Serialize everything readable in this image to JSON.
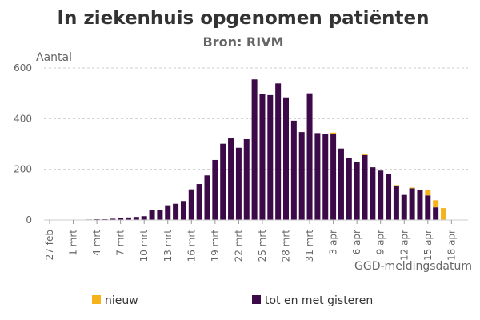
{
  "chart_data": {
    "type": "bar",
    "stacked": true,
    "title": "In ziekenhuis opgenomen patiënten",
    "subtitle": "Bron: RIVM",
    "ylabel": "Aantal",
    "xlabel": "GGD-meldingsdatum",
    "ylim": [
      0,
      600
    ],
    "yticks": [
      0,
      200,
      400,
      600
    ],
    "grid": true,
    "legend_position": "bottom",
    "colors": {
      "nieuw": "#f5b21a",
      "tot en met gisteren": "#3c0a49"
    },
    "categories": [
      "27 feb",
      "28 feb",
      "29 feb",
      "1 mrt",
      "2 mrt",
      "3 mrt",
      "4 mrt",
      "5 mrt",
      "6 mrt",
      "7 mrt",
      "8 mrt",
      "9 mrt",
      "10 mrt",
      "11 mrt",
      "12 mrt",
      "13 mrt",
      "14 mrt",
      "15 mrt",
      "16 mrt",
      "17 mrt",
      "18 mrt",
      "19 mrt",
      "20 mrt",
      "21 mrt",
      "22 mrt",
      "23 mrt",
      "24 mrt",
      "25 mrt",
      "26 mrt",
      "27 mrt",
      "28 mrt",
      "29 mrt",
      "30 mrt",
      "31 mrt",
      "1 apr",
      "2 apr",
      "3 apr",
      "4 apr",
      "5 apr",
      "6 apr",
      "7 apr",
      "8 apr",
      "9 apr",
      "10 apr",
      "11 apr",
      "12 apr",
      "13 apr",
      "14 apr",
      "15 apr",
      "16 apr",
      "17 apr",
      "18 apr"
    ],
    "x_tick_labels": [
      "27 feb",
      "1 mrt",
      "4 mrt",
      "7 mrt",
      "10 mrt",
      "13 mrt",
      "16 mrt",
      "19 mrt",
      "22 mrt",
      "25 mrt",
      "28 mrt",
      "31 mrt",
      "3 apr",
      "6 apr",
      "9 apr",
      "12 apr",
      "15 apr",
      "18 apr"
    ],
    "series": [
      {
        "name": "tot en met gisteren",
        "values": [
          1,
          0,
          1,
          1,
          1,
          2,
          3,
          3,
          5,
          9,
          10,
          12,
          15,
          40,
          40,
          58,
          64,
          75,
          121,
          142,
          176,
          237,
          301,
          322,
          285,
          319,
          555,
          496,
          493,
          539,
          484,
          392,
          347,
          500,
          343,
          340,
          341,
          282,
          246,
          229,
          256,
          208,
          195,
          182,
          136,
          99,
          125,
          117,
          97,
          50,
          2,
          0
        ]
      },
      {
        "name": "nieuw",
        "values": [
          0,
          0,
          0,
          0,
          0,
          0,
          0,
          0,
          0,
          0,
          0,
          0,
          0,
          0,
          0,
          0,
          0,
          0,
          0,
          0,
          0,
          0,
          0,
          0,
          0,
          0,
          0,
          0,
          0,
          0,
          0,
          0,
          0,
          0,
          0,
          0,
          4,
          0,
          0,
          0,
          3,
          0,
          0,
          0,
          2,
          0,
          3,
          2,
          22,
          28,
          45,
          0
        ]
      }
    ]
  }
}
